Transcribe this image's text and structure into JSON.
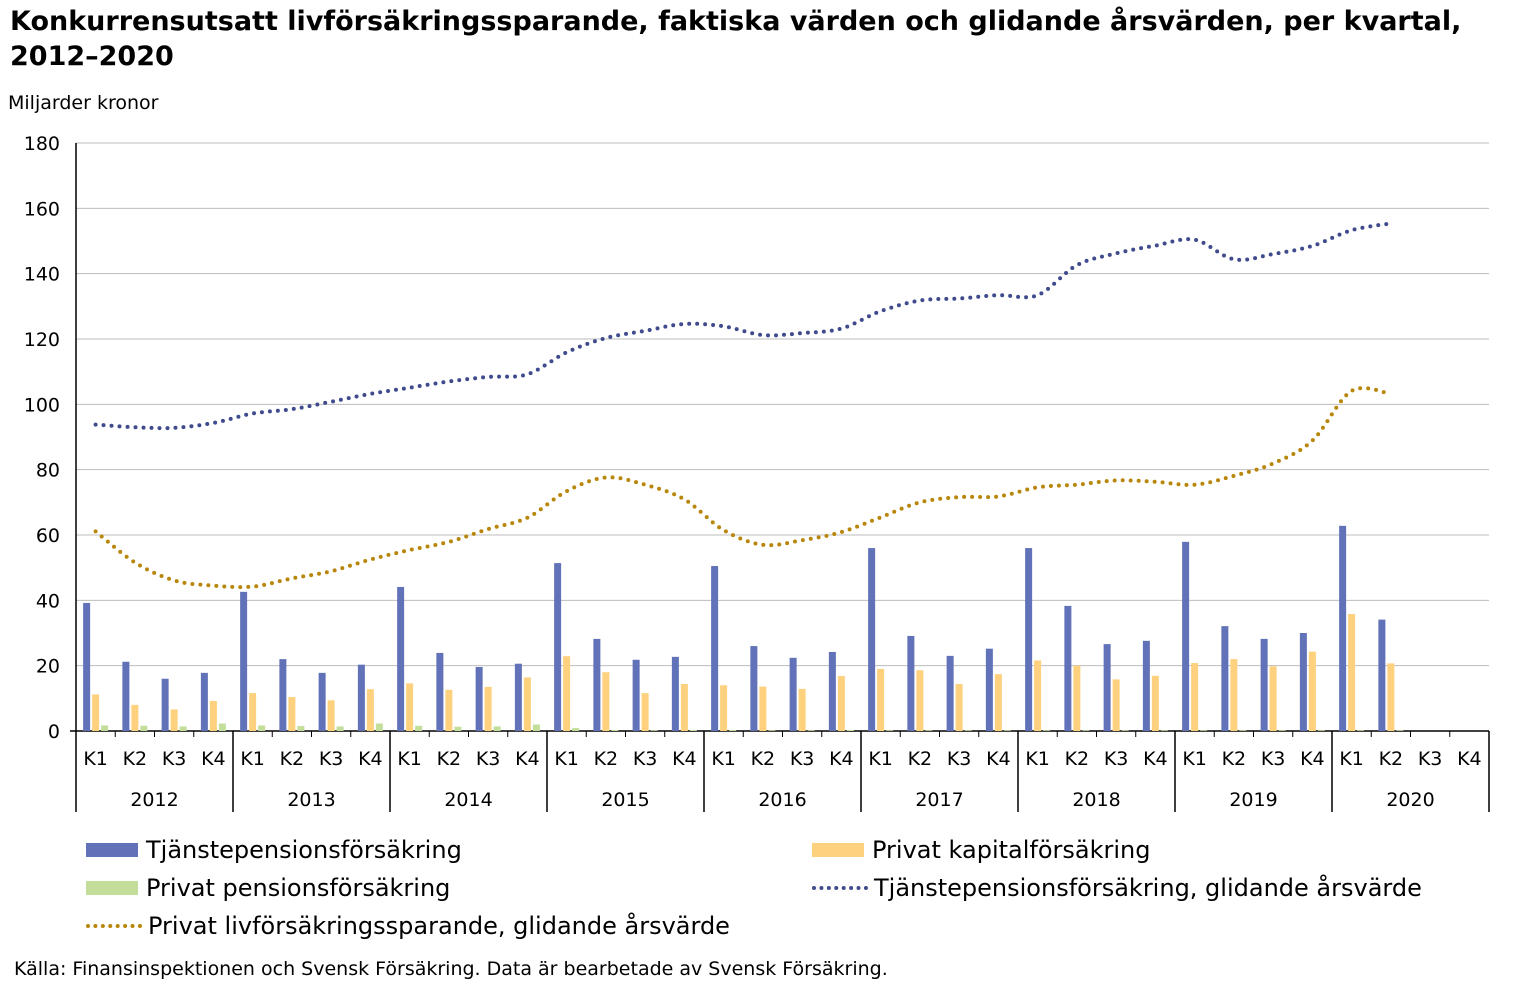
{
  "title": "Konkurrensutsatt livförsäkringssparande, faktiska värden och glidande årsvärden, per kvartal, 2012–2020",
  "source": "Källa: Finansinspektionen och Svensk Försäkring. Data är bearbetade av Svensk Försäkring.",
  "chart_data": {
    "type": "bar",
    "ylabel": "Miljarder kronor",
    "ylim": [
      0,
      180
    ],
    "yticks": [
      0,
      20,
      40,
      60,
      80,
      100,
      120,
      140,
      160,
      180
    ],
    "grid": true,
    "legend_position": "bottom",
    "quarters": [
      "K1",
      "K2",
      "K3",
      "K4"
    ],
    "years": [
      "2012",
      "2013",
      "2014",
      "2015",
      "2016",
      "2017",
      "2018",
      "2019",
      "2020"
    ],
    "series": [
      {
        "name": "Tjänstepensionsförsäkring",
        "kind": "bar",
        "color": "#6272B8",
        "values": [
          39.2,
          21.2,
          16,
          17.8,
          42.6,
          22,
          17.8,
          20.3,
          44.1,
          23.9,
          19.6,
          20.6,
          51.4,
          28.2,
          21.8,
          22.7,
          50.5,
          26,
          22.4,
          24.2,
          56,
          29.1,
          23,
          25.2,
          56,
          38.3,
          26.6,
          27.6,
          57.9,
          32.1,
          28.2,
          30,
          62.8,
          34.1,
          null,
          null
        ]
      },
      {
        "name": "Privat kapitalförsäkring",
        "kind": "bar",
        "color": "#FDD17E",
        "values": [
          11.2,
          8,
          6.6,
          9.2,
          11.6,
          10.4,
          9.4,
          12.8,
          14.6,
          12.6,
          13.5,
          16.4,
          22.9,
          18,
          11.6,
          14.4,
          14,
          13.6,
          12.9,
          16.8,
          19,
          18.6,
          14.4,
          17.4,
          21.6,
          20,
          15.8,
          16.9,
          20.8,
          22,
          19.8,
          24.3,
          35.8,
          20.7,
          null,
          null
        ]
      },
      {
        "name": "Privat pensionsförsäkring",
        "kind": "bar",
        "color": "#C3DE9A",
        "values": [
          1.7,
          1.6,
          1.4,
          2.3,
          1.7,
          1.5,
          1.4,
          2.3,
          1.6,
          1.3,
          1.4,
          2,
          0.9,
          0.3,
          0.2,
          0.3,
          0.3,
          0.2,
          0.2,
          0.3,
          0.2,
          0.2,
          0.2,
          0.2,
          0.2,
          0.2,
          0.2,
          0.2,
          0.2,
          0.2,
          0.2,
          0.2,
          0.2,
          0.2,
          null,
          null
        ]
      },
      {
        "name": "Tjänstepensionsförsäkring, glidande årsvärde",
        "kind": "line",
        "color": "#3F4B8C",
        "values": [
          93.8,
          93,
          92.8,
          94.3,
          97.2,
          98.5,
          100.8,
          103.2,
          105.1,
          107,
          108.4,
          109.2,
          115.9,
          120.3,
          122.5,
          124.6,
          123.9,
          121.2,
          121.8,
          123.2,
          128.5,
          131.8,
          132.4,
          133.4,
          133.4,
          142.6,
          146.2,
          148.6,
          150.4,
          144.4,
          146,
          148.5,
          153.3,
          155.4,
          null,
          null
        ]
      },
      {
        "name": "Privat livförsäkringssparande, glidande årsvärde",
        "kind": "line",
        "color": "#B8860B",
        "values": [
          61.1,
          51.6,
          46.1,
          44.5,
          44.2,
          46.7,
          48.9,
          52.5,
          55.4,
          57.9,
          61.8,
          65.3,
          73.4,
          77.6,
          75.4,
          70.9,
          61.5,
          57,
          58.4,
          60.9,
          65.4,
          70,
          71.6,
          71.8,
          74.6,
          75.4,
          76.7,
          76.3,
          75.4,
          78.1,
          81.9,
          88.9,
          104.1,
          103.2,
          null,
          null
        ]
      }
    ]
  }
}
